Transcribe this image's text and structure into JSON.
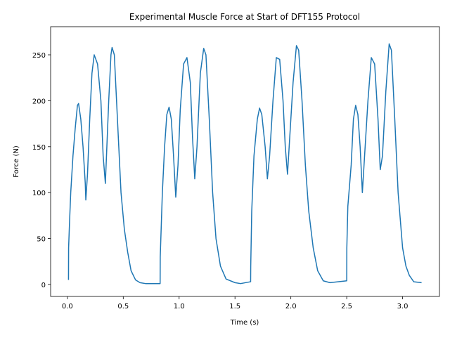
{
  "chart_data": {
    "type": "line",
    "title": "Experimental Muscle Force at Start of DFT155 Protocol",
    "xlabel": "Time (s)",
    "ylabel": "Force (N)",
    "x": [
      0.01,
      0.011,
      0.02,
      0.03,
      0.05,
      0.07,
      0.09,
      0.1,
      0.12,
      0.14,
      0.16,
      0.165,
      0.18,
      0.2,
      0.22,
      0.24,
      0.27,
      0.3,
      0.32,
      0.34,
      0.35,
      0.37,
      0.39,
      0.4,
      0.42,
      0.44,
      0.46,
      0.48,
      0.51,
      0.54,
      0.57,
      0.61,
      0.65,
      0.7,
      0.83,
      0.831,
      0.85,
      0.87,
      0.89,
      0.91,
      0.93,
      0.95,
      0.97,
      0.99,
      1.01,
      1.04,
      1.07,
      1.1,
      1.12,
      1.14,
      1.16,
      1.19,
      1.22,
      1.24,
      1.27,
      1.3,
      1.33,
      1.37,
      1.42,
      1.5,
      1.55,
      1.64,
      1.641,
      1.65,
      1.67,
      1.7,
      1.72,
      1.74,
      1.77,
      1.79,
      1.81,
      1.84,
      1.87,
      1.9,
      1.93,
      1.95,
      1.97,
      1.99,
      2.02,
      2.05,
      2.07,
      2.1,
      2.13,
      2.16,
      2.2,
      2.24,
      2.29,
      2.35,
      2.5,
      2.501,
      2.51,
      2.54,
      2.56,
      2.58,
      2.6,
      2.62,
      2.64,
      2.66,
      2.69,
      2.72,
      2.75,
      2.78,
      2.8,
      2.82,
      2.85,
      2.88,
      2.9,
      2.93,
      2.96,
      3.0,
      3.03,
      3.06,
      3.1,
      3.17
    ],
    "series": [
      {
        "color": "#1f77b4",
        "values": [
          5,
          40,
          70,
          100,
          140,
          170,
          195,
          197,
          180,
          150,
          110,
          92,
          120,
          180,
          230,
          250,
          240,
          200,
          140,
          110,
          140,
          200,
          250,
          258,
          250,
          200,
          150,
          100,
          60,
          35,
          15,
          5,
          2,
          1,
          1,
          30,
          100,
          150,
          185,
          193,
          180,
          140,
          95,
          130,
          190,
          240,
          247,
          220,
          160,
          115,
          150,
          230,
          257,
          250,
          180,
          100,
          50,
          20,
          6,
          2,
          1,
          3,
          20,
          80,
          140,
          180,
          192,
          185,
          150,
          115,
          140,
          200,
          247,
          245,
          200,
          150,
          120,
          160,
          220,
          260,
          255,
          200,
          130,
          80,
          40,
          15,
          4,
          2,
          4,
          40,
          85,
          130,
          180,
          195,
          185,
          150,
          100,
          140,
          200,
          247,
          240,
          180,
          125,
          140,
          210,
          262,
          255,
          180,
          100,
          40,
          20,
          10,
          3,
          2
        ]
      }
    ],
    "xlim": [
      -0.15,
      3.33
    ],
    "ylim": [
      -13,
      280.6
    ],
    "xticks": [
      {
        "value": 0,
        "label": "0.0"
      },
      0.5,
      {
        "value": 1,
        "label": "1.0"
      },
      1.5,
      {
        "value": 2,
        "label": "2.0"
      },
      2.5,
      {
        "value": 3,
        "label": "3.0"
      }
    ],
    "yticks": [
      0,
      50,
      100,
      150,
      200,
      250
    ],
    "grid": false
  }
}
